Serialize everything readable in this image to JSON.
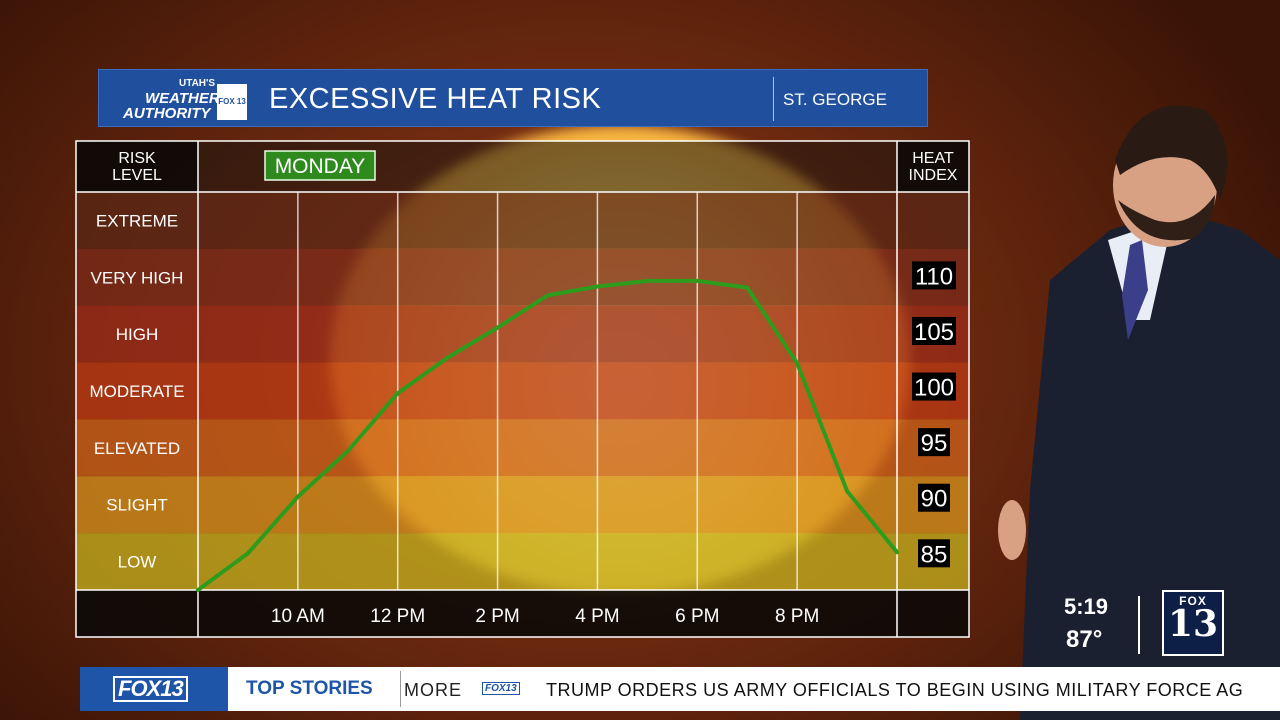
{
  "header": {
    "logo_top": "UTAH'S",
    "logo_mid": "WEATHER",
    "logo_bottom": "AUTHORITY",
    "logo_badge": "FOX 13",
    "title": "EXCESSIVE HEAT RISK",
    "location": "ST. GEORGE"
  },
  "chart_data": {
    "type": "line",
    "day_label": "MONDAY",
    "left_header": [
      "RISK",
      "LEVEL"
    ],
    "right_header": [
      "HEAT",
      "INDEX"
    ],
    "risk_levels": [
      "EXTREME",
      "VERY HIGH",
      "HIGH",
      "MODERATE",
      "ELEVATED",
      "SLIGHT",
      "LOW"
    ],
    "risk_colors": [
      "#5a2616",
      "#7a2a1a",
      "#9a2c1a",
      "#b93a15",
      "#c9601a",
      "#d28f1c",
      "#c2ad1e"
    ],
    "x_ticks": [
      "10 AM",
      "12 PM",
      "2 PM",
      "4 PM",
      "6 PM",
      "8 PM"
    ],
    "x_tick_hours": [
      10,
      12,
      14,
      16,
      18,
      20
    ],
    "y_ticks": [
      110,
      105,
      100,
      95,
      90,
      85
    ],
    "xlim": [
      8,
      22
    ],
    "ylim": [
      81.7,
      117.5
    ],
    "line_color": "#2f9b1c",
    "series": [
      {
        "x": [
          8,
          9,
          10,
          11,
          12,
          13,
          14,
          15,
          16,
          17,
          18,
          19,
          20,
          21,
          22
        ],
        "y": [
          81.7,
          85.0,
          90.1,
          94.2,
          99.4,
          102.6,
          105.3,
          108.2,
          109.0,
          109.5,
          109.5,
          108.9,
          102.1,
          90.6,
          85.1
        ]
      }
    ]
  },
  "clock": {
    "time": "5:19",
    "temp": "87°"
  },
  "station": {
    "fox": "FOX",
    "num": "13"
  },
  "ticker": {
    "logo": "FOX13",
    "section": "TOP STORIES",
    "more": "MORE",
    "mini_logo": "FOX13",
    "headline": "TRUMP ORDERS US ARMY OFFICIALS TO BEGIN USING MILITARY FORCE AG"
  }
}
